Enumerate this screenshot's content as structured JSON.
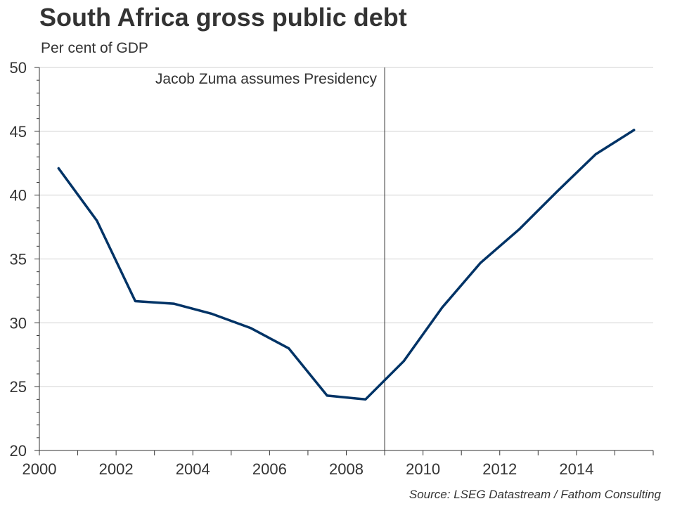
{
  "title": "South Africa gross public debt",
  "subtitle": "Per cent of GDP",
  "source": "Source: LSEG Datastream / Fathom Consulting",
  "colors": {
    "line": "#003366",
    "grid": "#d0d0d0",
    "axis": "#333333",
    "vline": "#333333"
  },
  "chart_data": {
    "type": "line",
    "title": "South Africa gross public debt",
    "ylabel": "Per cent of GDP",
    "xlabel": "",
    "xlim": [
      2000,
      2016
    ],
    "ylim": [
      20,
      50
    ],
    "x_ticks": [
      "2000",
      "2002",
      "2004",
      "2006",
      "2008",
      "2010",
      "2012",
      "2014"
    ],
    "y_ticks": [
      "20",
      "25",
      "30",
      "35",
      "40",
      "45",
      "50"
    ],
    "grid": true,
    "series": [
      {
        "x": [
          2000.5,
          2001.5,
          2002.5,
          2003.5,
          2004.5,
          2005.5,
          2006.5,
          2007.5,
          2008.5,
          2009.5,
          2010.5,
          2011.5,
          2012.5,
          2013.5,
          2014.5,
          2015.5
        ],
        "values": [
          42.1,
          38.0,
          31.7,
          31.5,
          30.7,
          29.6,
          28.0,
          24.3,
          24.0,
          27.0,
          31.2,
          34.7,
          37.3,
          40.3,
          43.2,
          45.1
        ]
      }
    ],
    "annotations": [
      {
        "text": "Jacob Zuma assumes Presidency",
        "x": 2009.0
      }
    ]
  }
}
